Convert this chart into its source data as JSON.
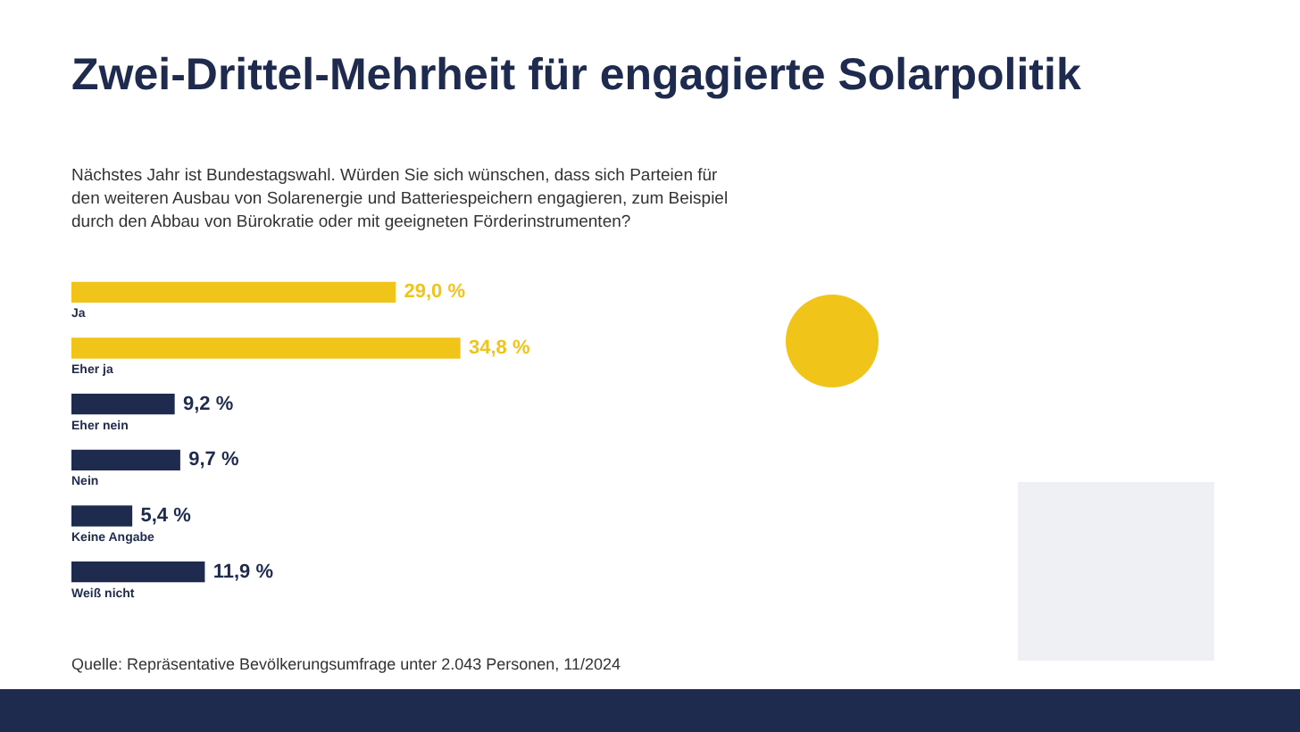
{
  "chart_data": {
    "type": "bar",
    "orientation": "horizontal",
    "title": "Zwei-Drittel-Mehrheit für engagierte Solarpolitik",
    "subtitle": "Nächstes Jahr ist Bundestagswahl. Würden Sie sich wünschen, dass sich Parteien für den weiteren Ausbau von Solarenergie und Batteriespeichern engagieren, zum Beispiel durch den Abbau von Bürokratie oder mit geeigneten Förderinstrumenten?",
    "categories": [
      "Ja",
      "Eher ja",
      "Eher nein",
      "Nein",
      "Keine Angabe",
      "Weiß nicht"
    ],
    "values": [
      29.0,
      34.8,
      9.2,
      9.7,
      5.4,
      11.9
    ],
    "colors": [
      "#f0c419",
      "#f0c419",
      "#1f2a4f",
      "#1f2a4f",
      "#1f2a4f",
      "#1f2a4f"
    ],
    "value_labels": [
      "29,0 %",
      "34,8 %",
      "9,2 %",
      "9,7 %",
      "5,4 %",
      "11,9 %"
    ],
    "annotations": [
      "Quelle: Repräsentative Bevölkerungsumfrage unter 2.043 Personen, 11/2024"
    ],
    "legend": false
  }
}
